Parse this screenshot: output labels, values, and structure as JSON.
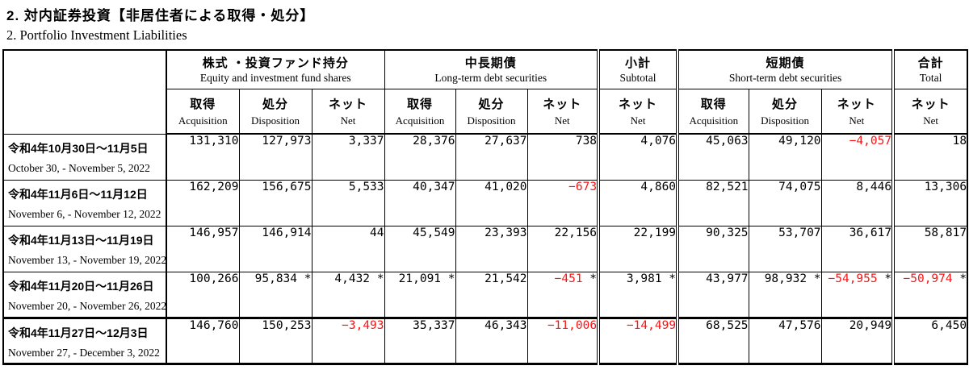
{
  "page": {
    "title_ja": "2.  対内証券投資【非居住者による取得・処分】",
    "title_en": "2. Portfolio Investment Liabilities"
  },
  "colors": {
    "negative": "#fb1414",
    "text": "#000000",
    "border": "#000000"
  },
  "table": {
    "header": {
      "groups": [
        {
          "ja": "株式 ・投資ファンド持分",
          "en": "Equity and investment fund shares",
          "span": 3
        },
        {
          "ja": "中長期債",
          "en": "Long-term debt securities",
          "span": 3
        },
        {
          "ja": "小計",
          "en": "Subtotal",
          "span": 1
        },
        {
          "ja": "短期債",
          "en": "Short-term debt securities",
          "span": 3
        },
        {
          "ja": "合計",
          "en": "Total",
          "span": 1
        }
      ],
      "columns": [
        {
          "ja": "取得",
          "en": "Acquisition"
        },
        {
          "ja": "処分",
          "en": "Disposition"
        },
        {
          "ja": "ネット",
          "en": "Net"
        },
        {
          "ja": "取得",
          "en": "Acquisition"
        },
        {
          "ja": "処分",
          "en": "Disposition"
        },
        {
          "ja": "ネット",
          "en": "Net"
        },
        {
          "ja": "ネット",
          "en": "Net"
        },
        {
          "ja": "取得",
          "en": "Acquisition"
        },
        {
          "ja": "処分",
          "en": "Disposition"
        },
        {
          "ja": "ネット",
          "en": "Net"
        },
        {
          "ja": "ネット",
          "en": "Net"
        }
      ]
    },
    "rows": [
      {
        "period_ja": "令和4年10月30日〜11月5日",
        "period_en": "October 30, - November 5, 2022",
        "values": [
          "131,310",
          "127,973",
          "3,337",
          "28,376",
          "27,637",
          "738",
          "4,076",
          "45,063",
          "49,120",
          "−4,057",
          "18"
        ],
        "emphasized": false
      },
      {
        "period_ja": "令和4年11月6日〜11月12日",
        "period_en": "November 6, - November 12, 2022",
        "values": [
          "162,209",
          "156,675",
          "5,533",
          "40,347",
          "41,020",
          "−673",
          "4,860",
          "82,521",
          "74,075",
          "8,446",
          "13,306"
        ],
        "emphasized": false
      },
      {
        "period_ja": "令和4年11月13日〜11月19日",
        "period_en": "November 13, - November 19, 2022",
        "values": [
          "146,957",
          "146,914",
          "44",
          "45,549",
          "23,393",
          "22,156",
          "22,199",
          "90,325",
          "53,707",
          "36,617",
          "58,817"
        ],
        "emphasized": false
      },
      {
        "period_ja": "令和4年11月20日〜11月26日",
        "period_en": "November 20, - November 26, 2022",
        "values": [
          "100,266",
          "95,834 *",
          "4,432 *",
          "21,091 *",
          "21,542",
          "−451 *",
          "3,981 *",
          "43,977",
          "98,932 *",
          "−54,955 *",
          "−50,974 *"
        ],
        "emphasized": false
      },
      {
        "period_ja": "令和4年11月27日〜12月3日",
        "period_en": "November 27, - December 3, 2022",
        "values": [
          "146,760",
          "150,253",
          "−3,493",
          "35,337",
          "46,343",
          "−11,006",
          "−14,499",
          "68,525",
          "47,576",
          "20,949",
          "6,450"
        ],
        "emphasized": true
      }
    ]
  }
}
